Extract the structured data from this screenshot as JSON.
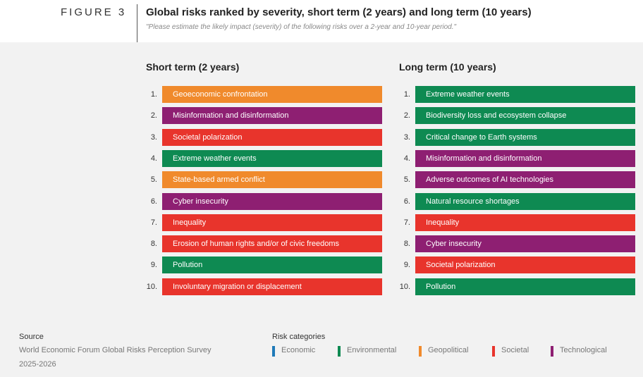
{
  "header": {
    "figure": "FIGURE 3",
    "title": "Global risks ranked by severity, short term (2 years) and long term (10 years)",
    "subtitle": "\"Please estimate the likely impact (severity) of the following risks over a 2-year and 10-year period.\""
  },
  "columns": [
    {
      "heading": "Short term (2 years)",
      "items": [
        {
          "rank": "1.",
          "label": "Geoeconomic confrontation",
          "color": "#f08a2c"
        },
        {
          "rank": "2.",
          "label": "Misinformation and disinformation",
          "color": "#8e1f72"
        },
        {
          "rank": "3.",
          "label": "Societal polarization",
          "color": "#e8342c"
        },
        {
          "rank": "4.",
          "label": "Extreme weather events",
          "color": "#0e8a52"
        },
        {
          "rank": "5.",
          "label": "State-based armed conflict",
          "color": "#f08a2c"
        },
        {
          "rank": "6.",
          "label": "Cyber insecurity",
          "color": "#8e1f72"
        },
        {
          "rank": "7.",
          "label": "Inequality",
          "color": "#e8342c"
        },
        {
          "rank": "8.",
          "label": "Erosion of human rights and/or of civic freedoms",
          "color": "#e8342c"
        },
        {
          "rank": "9.",
          "label": "Pollution",
          "color": "#0e8a52"
        },
        {
          "rank": "10.",
          "label": "Involuntary migration or displacement",
          "color": "#e8342c"
        }
      ]
    },
    {
      "heading": "Long term (10 years)",
      "items": [
        {
          "rank": "1.",
          "label": "Extreme weather events",
          "color": "#0e8a52"
        },
        {
          "rank": "2.",
          "label": "Biodiversity loss and ecosystem collapse",
          "color": "#0e8a52"
        },
        {
          "rank": "3.",
          "label": "Critical change to Earth systems",
          "color": "#0e8a52"
        },
        {
          "rank": "4.",
          "label": "Misinformation and disinformation",
          "color": "#8e1f72"
        },
        {
          "rank": "5.",
          "label": "Adverse outcomes of AI technologies",
          "color": "#8e1f72"
        },
        {
          "rank": "6.",
          "label": "Natural resource shortages",
          "color": "#0e8a52"
        },
        {
          "rank": "7.",
          "label": "Inequality",
          "color": "#e8342c"
        },
        {
          "rank": "8.",
          "label": "Cyber insecurity",
          "color": "#8e1f72"
        },
        {
          "rank": "9.",
          "label": "Societal polarization",
          "color": "#e8342c"
        },
        {
          "rank": "10.",
          "label": "Pollution",
          "color": "#0e8a52"
        }
      ]
    }
  ],
  "source": {
    "title": "Source",
    "lines": [
      "World Economic Forum Global Risks Perception Survey",
      "2025-2026"
    ]
  },
  "legend": {
    "title": "Risk categories",
    "items": [
      {
        "label": "Economic",
        "color": "#1f7ab8"
      },
      {
        "label": "Environmental",
        "color": "#0e8a52"
      },
      {
        "label": "Geopolitical",
        "color": "#f08a2c"
      },
      {
        "label": "Societal",
        "color": "#e8342c"
      },
      {
        "label": "Technological",
        "color": "#8e1f72"
      }
    ]
  }
}
